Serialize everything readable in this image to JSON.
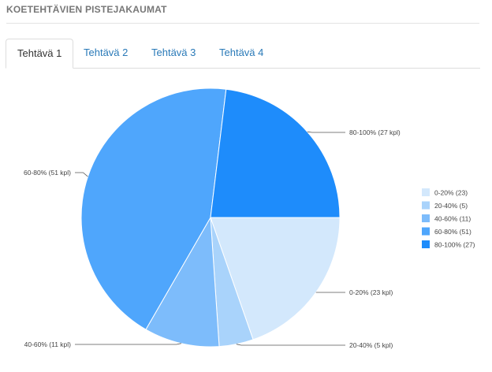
{
  "header": {
    "title": "KOETEHTÄVIEN PISTEJAKAUMAT"
  },
  "tabs": [
    {
      "label": "Tehtävä 1",
      "active": true
    },
    {
      "label": "Tehtävä 2",
      "active": false
    },
    {
      "label": "Tehtävä 3",
      "active": false
    },
    {
      "label": "Tehtävä 4",
      "active": false
    }
  ],
  "chart_data": {
    "type": "pie",
    "slices": [
      {
        "name": "0-20%",
        "value": 23,
        "label": "0-20% (23 kpl)",
        "legend": "0-20% (23)",
        "color": "#d3e8fc"
      },
      {
        "name": "20-40%",
        "value": 5,
        "label": "20-40% (5 kpl)",
        "legend": "20-40% (5)",
        "color": "#a9d3fb"
      },
      {
        "name": "40-60%",
        "value": 11,
        "label": "40-60% (11 kpl)",
        "legend": "40-60% (11)",
        "color": "#7dbcfb"
      },
      {
        "name": "60-80%",
        "value": 51,
        "label": "60-80% (51 kpl)",
        "legend": "60-80% (51)",
        "color": "#4fa6fc"
      },
      {
        "name": "80-100%",
        "value": 27,
        "label": "80-100% (27 kpl)",
        "legend": "80-100% (27)",
        "color": "#1e8cfb"
      }
    ],
    "start_direction": "3 o'clock",
    "direction": "clockwise",
    "legend_position": "right"
  }
}
